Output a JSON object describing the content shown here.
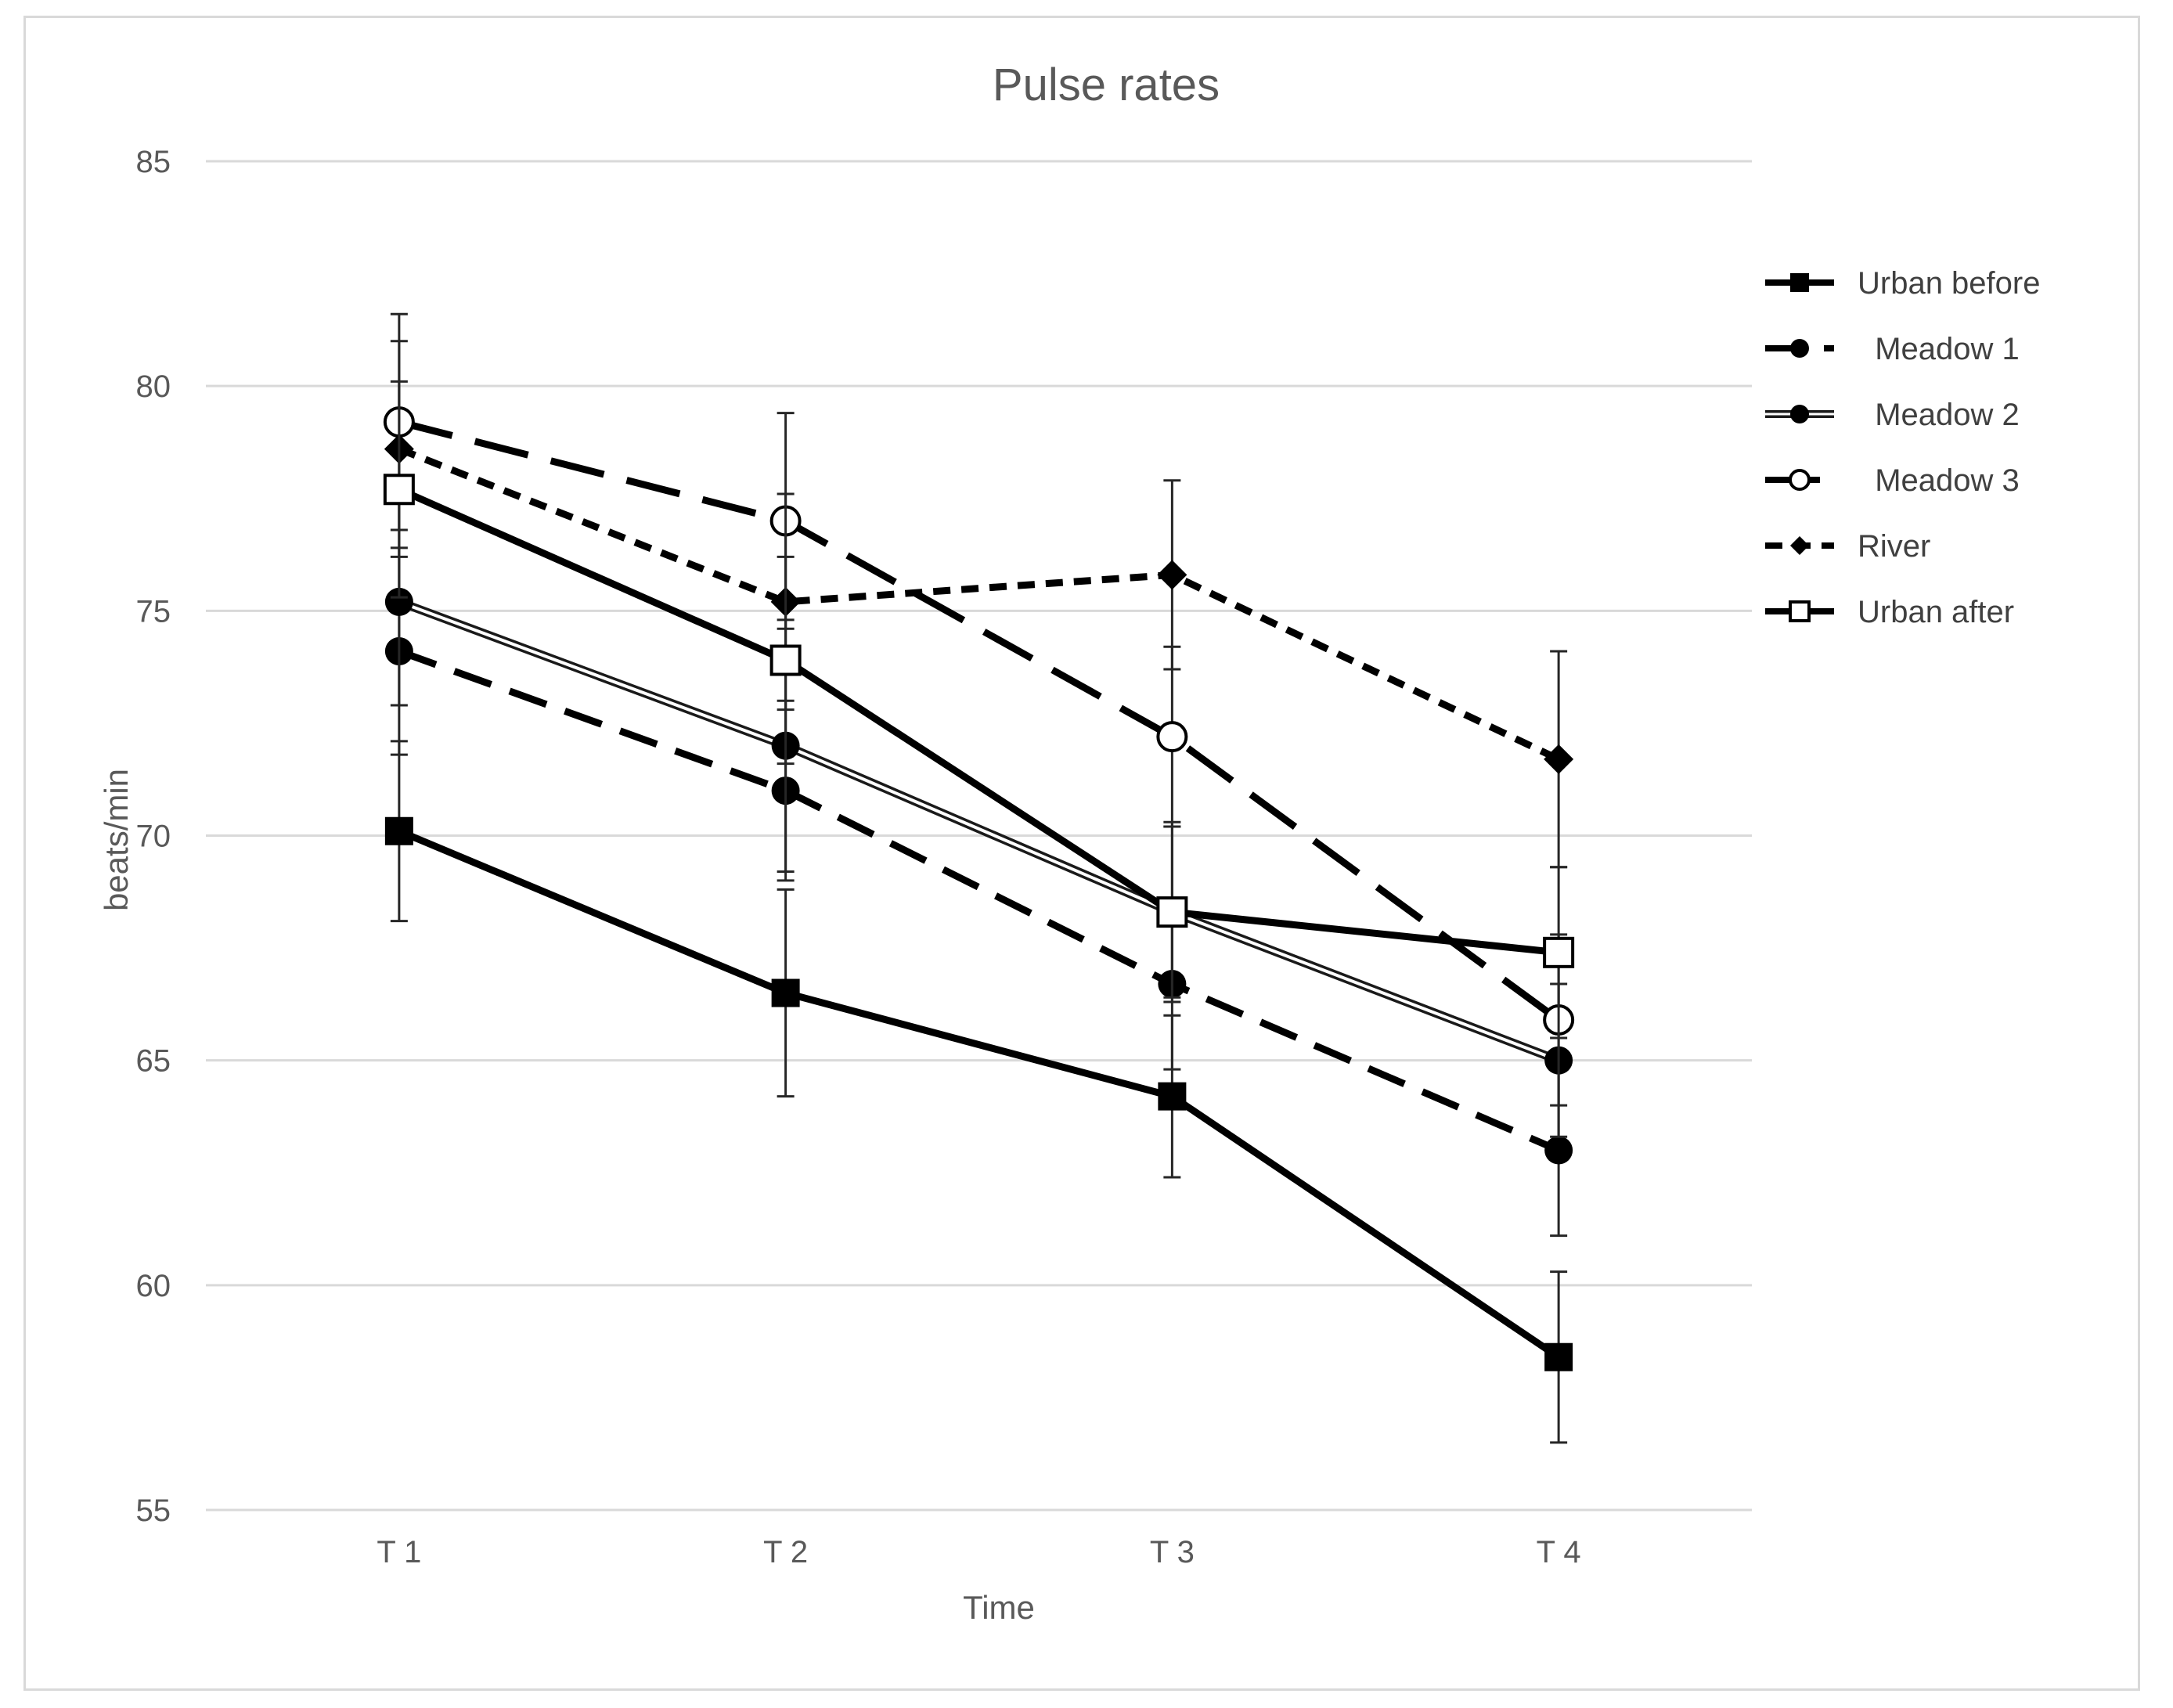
{
  "chart_data": {
    "type": "line",
    "title": "Pulse rates",
    "xlabel": "Time",
    "ylabel": "beats/min",
    "categories": [
      "T 1",
      "T 2",
      "T 3",
      "T 4"
    ],
    "ylim": [
      55,
      85
    ],
    "yticks": [
      55,
      60,
      65,
      70,
      75,
      80,
      85
    ],
    "grid": "horizontal",
    "legend_position": "right",
    "error_bars": true,
    "series": [
      {
        "name": "Urban before",
        "values": [
          70.1,
          66.5,
          64.2,
          58.4
        ],
        "errors": [
          2.0,
          2.3,
          1.8,
          1.9
        ],
        "line": "solid",
        "marker": "square-filled"
      },
      {
        "name": "Meadow 1",
        "values": [
          74.1,
          71.0,
          66.7,
          63.0
        ],
        "errors": [
          2.3,
          2.0,
          1.9,
          1.9
        ],
        "line": "dashed",
        "marker": "circle-filled"
      },
      {
        "name": "Meadow 2",
        "values": [
          75.2,
          72.0,
          68.3,
          65.0
        ],
        "errors": [
          2.3,
          2.8,
          2.0,
          1.7
        ],
        "line": "double",
        "marker": "circle-filled"
      },
      {
        "name": "Meadow 3",
        "values": [
          79.2,
          77.0,
          72.2,
          65.9
        ],
        "errors": [
          2.4,
          2.4,
          2.0,
          1.9
        ],
        "line": "long-dashed",
        "marker": "circle-open"
      },
      {
        "name": "River",
        "values": [
          78.6,
          75.2,
          75.8,
          71.7
        ],
        "errors": [
          2.4,
          2.4,
          2.1,
          2.4
        ],
        "line": "short-dashed",
        "marker": "diamond-filled"
      },
      {
        "name": "Urban after",
        "values": [
          77.7,
          73.9,
          68.3,
          67.4
        ],
        "errors": [
          2.4,
          2.3,
          1.9,
          1.9
        ],
        "line": "solid",
        "marker": "square-open"
      }
    ]
  }
}
